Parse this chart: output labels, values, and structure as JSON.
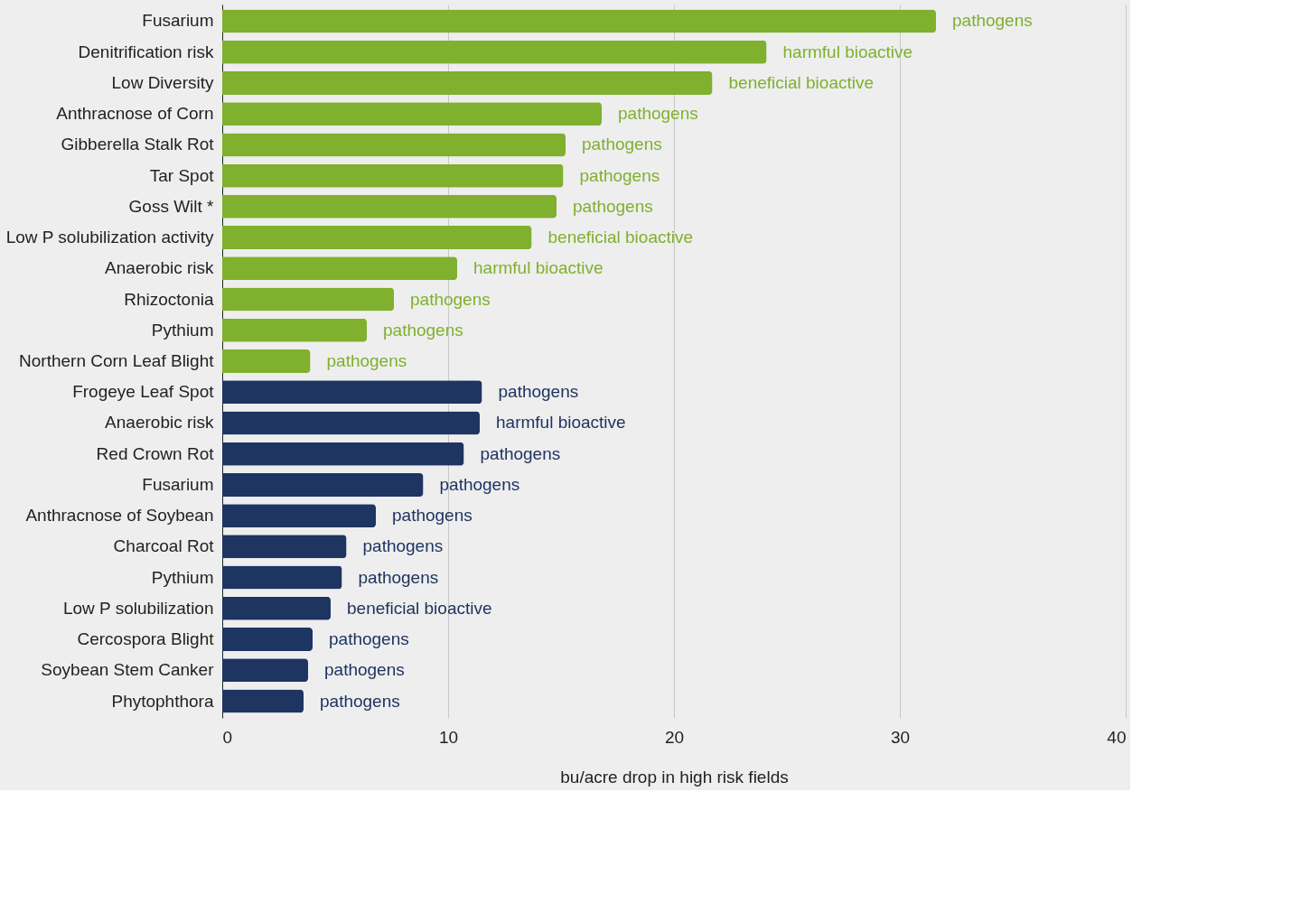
{
  "chart_data": {
    "type": "bar",
    "orientation": "horizontal",
    "xlabel": "bu/acre drop in high risk fields",
    "categories": [
      "Fusarium",
      "Denitrification risk",
      "Low Diversity",
      "Anthracnose of Corn",
      "Gibberella Stalk Rot",
      "Tar Spot",
      "Goss Wilt *",
      "Low P solubilization activity",
      "Anaerobic risk",
      "Rhizoctonia",
      "Pythium",
      "Northern Corn Leaf Blight",
      "Frogeye Leaf Spot",
      "Anaerobic risk",
      "Red Crown Rot",
      "Fusarium",
      "Anthracnose of Soybean",
      "Charcoal Rot",
      "Pythium",
      "Low P solubilization",
      "Cercospora Blight",
      "Soybean Stem Canker",
      "Phytophthora"
    ],
    "values": [
      31.6,
      24.1,
      21.7,
      16.8,
      15.2,
      15.1,
      14.8,
      13.7,
      10.4,
      7.6,
      6.4,
      3.9,
      11.5,
      11.4,
      10.7,
      8.9,
      6.8,
      5.5,
      5.3,
      4.8,
      4.0,
      3.8,
      3.6
    ],
    "colors": [
      "#7fb02e",
      "#7fb02e",
      "#7fb02e",
      "#7fb02e",
      "#7fb02e",
      "#7fb02e",
      "#7fb02e",
      "#7fb02e",
      "#7fb02e",
      "#7fb02e",
      "#7fb02e",
      "#7fb02e",
      "#1e3461",
      "#1e3461",
      "#1e3461",
      "#1e3461",
      "#1e3461",
      "#1e3461",
      "#1e3461",
      "#1e3461",
      "#1e3461",
      "#1e3461",
      "#1e3461"
    ],
    "value_labels": [
      "pathogens",
      "harmful bioactive",
      "beneficial bioactive",
      "pathogens",
      "pathogens",
      "pathogens",
      "pathogens",
      "beneficial bioactive",
      "harmful bioactive",
      "pathogens",
      "pathogens",
      "pathogens",
      "pathogens",
      "harmful bioactive",
      "pathogens",
      "pathogens",
      "pathogens",
      "pathogens",
      "pathogens",
      "beneficial bioactive",
      "pathogens",
      "pathogens",
      "pathogens"
    ],
    "xlim": [
      0,
      40
    ],
    "xticks": [
      0,
      10,
      20,
      30,
      40
    ],
    "grid": "x",
    "legend": false
  }
}
